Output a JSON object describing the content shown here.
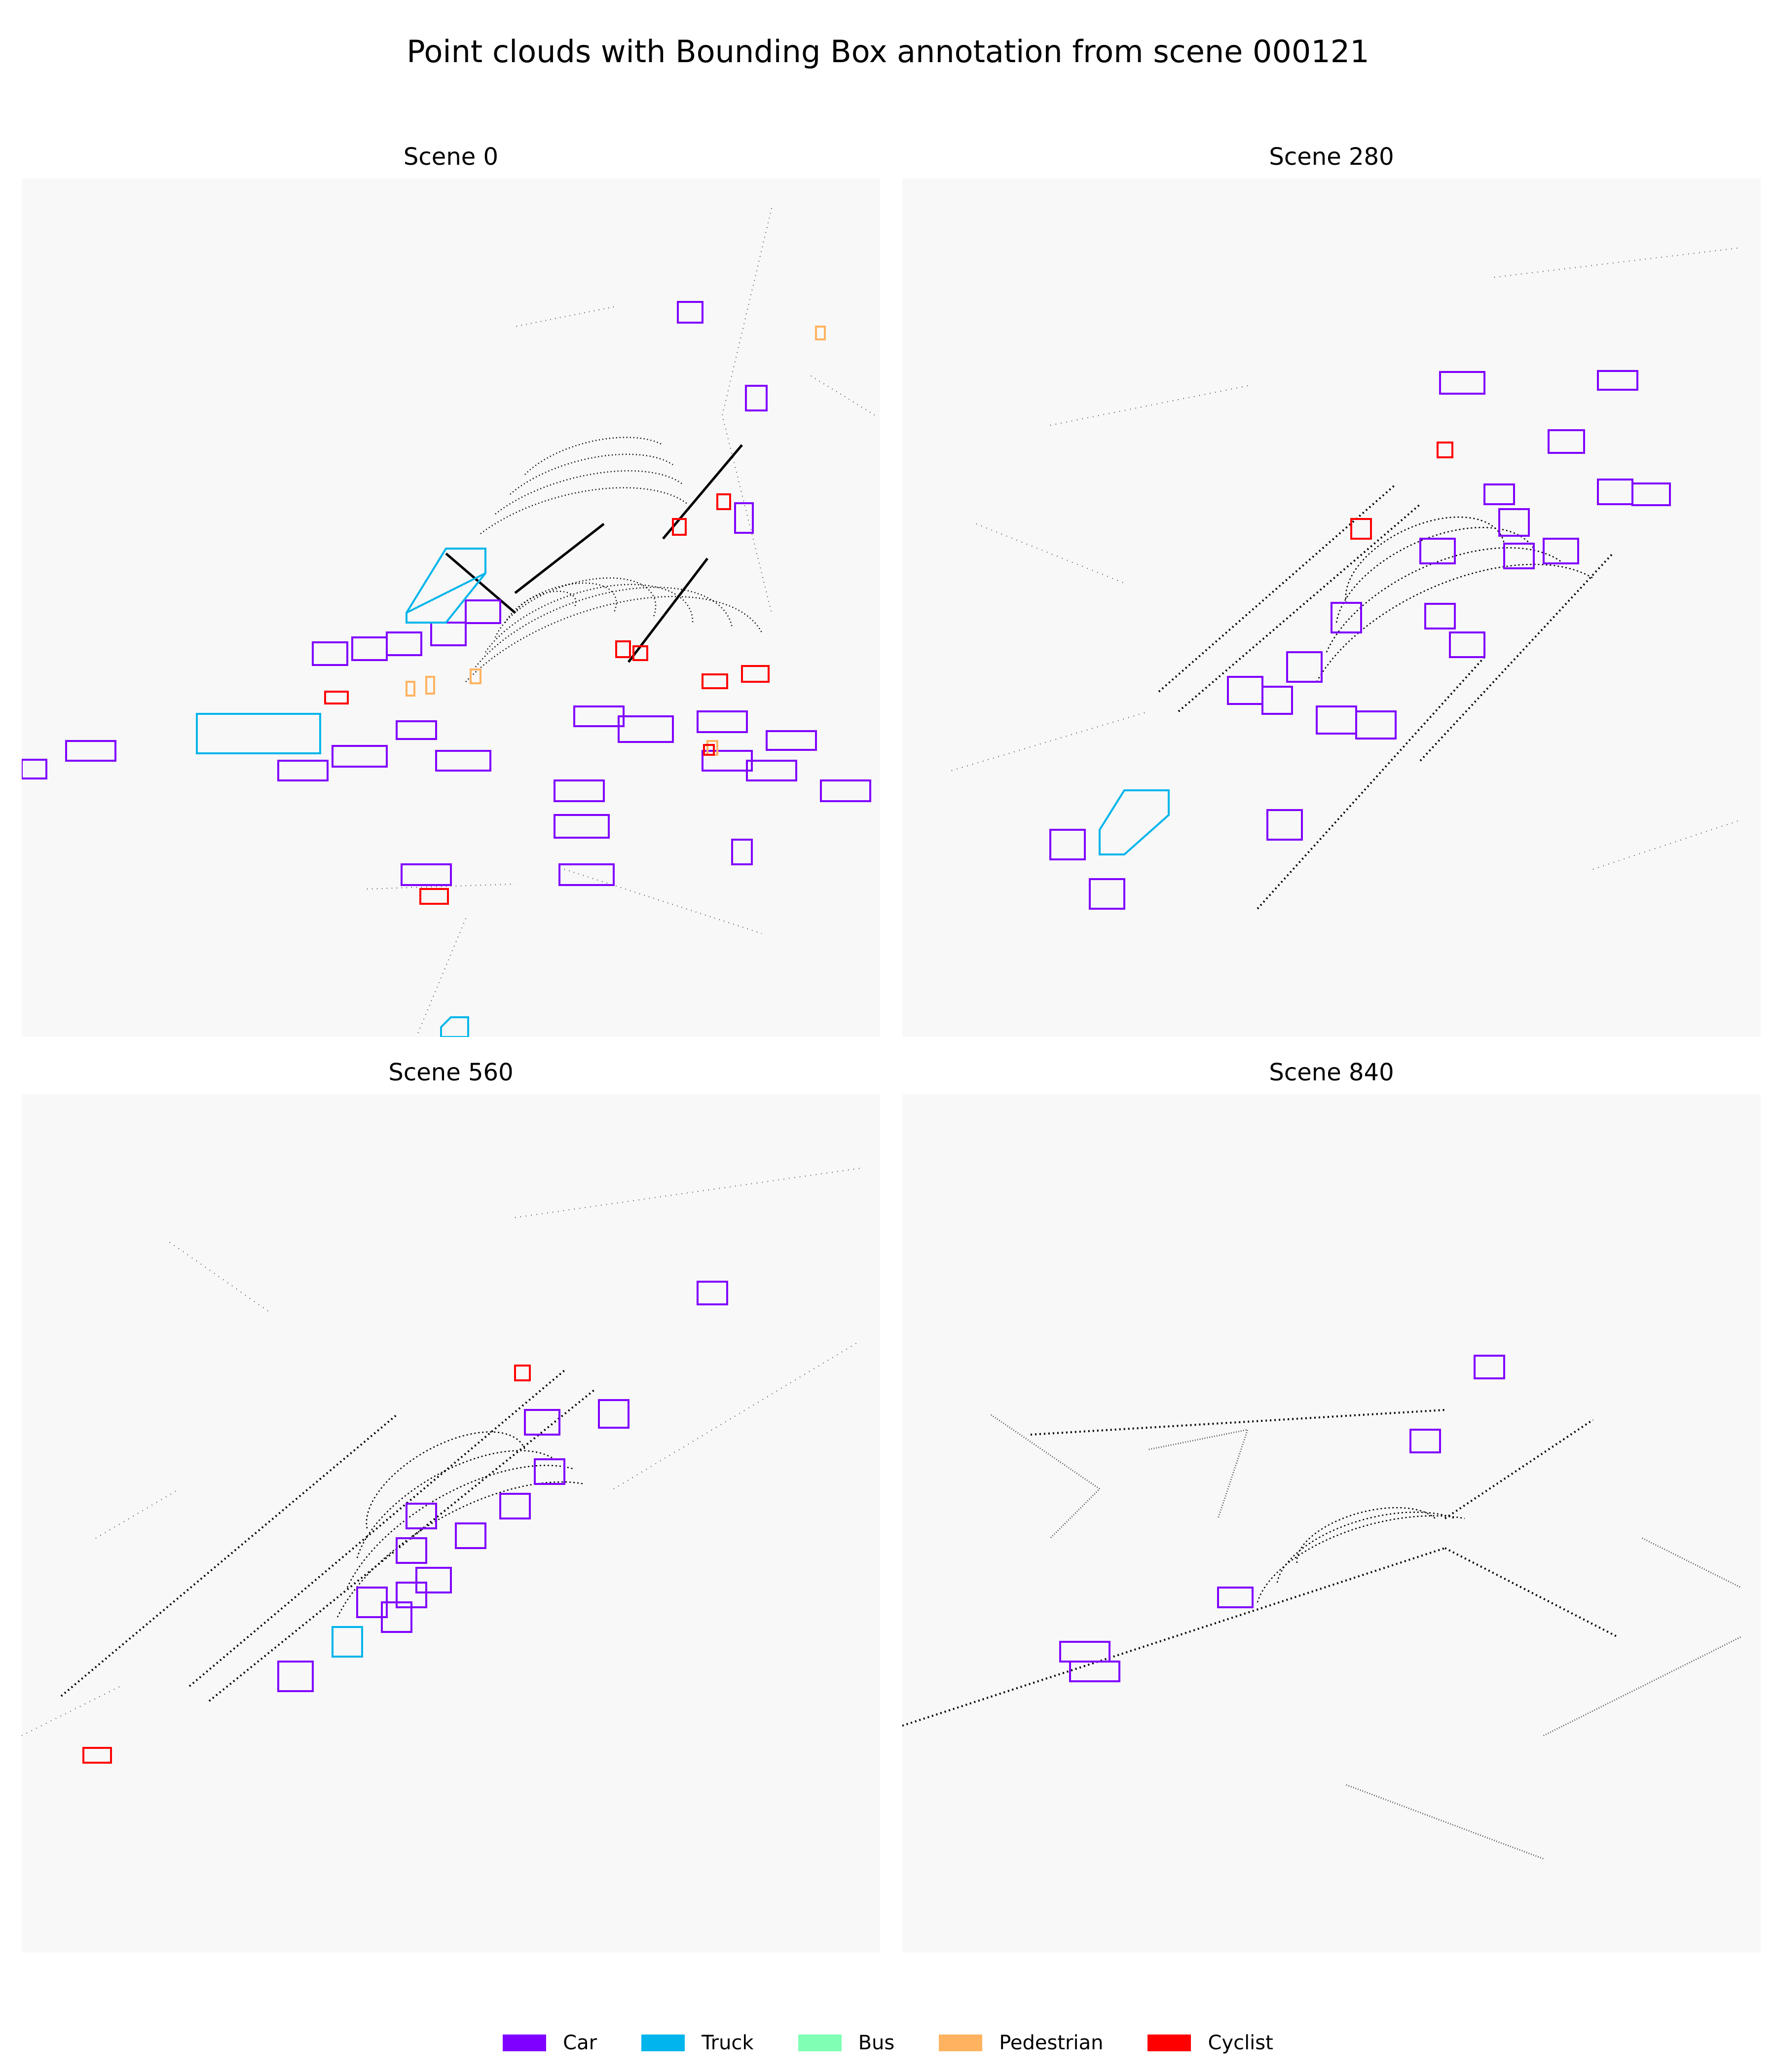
{
  "figure": {
    "title": "Point clouds with Bounding Box annotation from scene 000121"
  },
  "panels": [
    {
      "title": "Scene 0"
    },
    {
      "title": "Scene 280"
    },
    {
      "title": "Scene 560"
    },
    {
      "title": "Scene 840"
    }
  ],
  "legend": [
    {
      "label": "Car",
      "color": "#8000ff"
    },
    {
      "label": "Truck",
      "color": "#00b5eb"
    },
    {
      "label": "Bus",
      "color": "#80ffb4"
    },
    {
      "label": "Pedestrian",
      "color": "#ffb360"
    },
    {
      "label": "Cyclist",
      "color": "#ff0000"
    }
  ],
  "annotation_counts": {
    "scene_0": {
      "Car": 26,
      "Truck": 3,
      "Pedestrian": 5,
      "Cyclist": 9
    },
    "scene_280": {
      "Car": 24,
      "Truck": 1,
      "Cyclist": 2
    },
    "scene_560": {
      "Car": 15,
      "Truck": 1,
      "Cyclist": 2
    },
    "scene_840": {
      "Car": 5
    }
  }
}
